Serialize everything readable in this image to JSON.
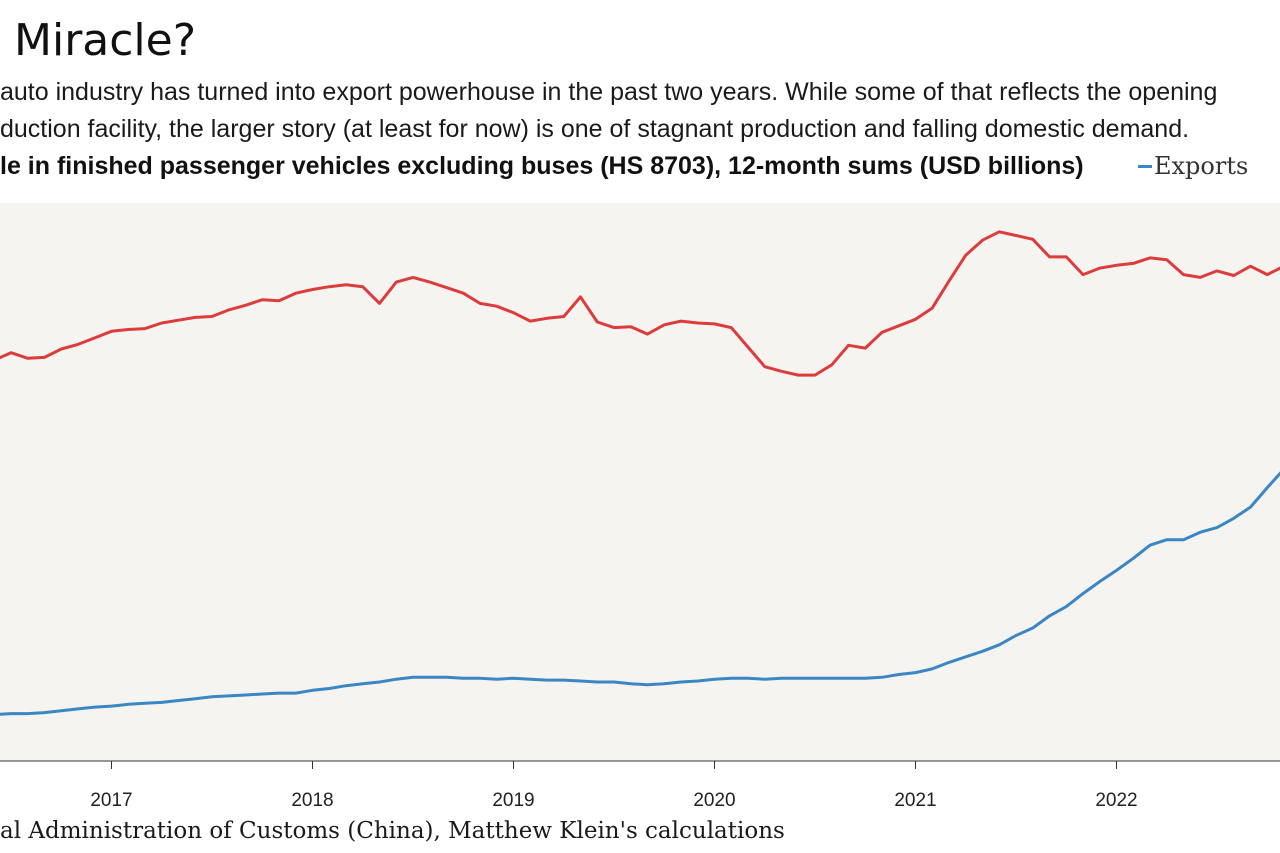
{
  "header": {
    "title": "Miracle?",
    "subtitle_lines": [
      "auto industry has turned into export powerhouse in the past two years. While some of that reflects the opening",
      "duction facility, the larger story (at least for now) is one of stagnant production and falling domestic demand."
    ]
  },
  "chart_title": "le in finished passenger vehicles excluding buses (HS 8703), 12-month sums (USD billions)",
  "source": "al Administration of Customs (China), Matthew Klein's calculations",
  "colors": {
    "plot_background": "#f6f4f0",
    "exports": "#3b87c4",
    "imports": "#dc3c3c",
    "axis": "#333333"
  },
  "chart_data": {
    "type": "line",
    "x_axis": {
      "tick_labels": [
        "2017",
        "2018",
        "2019",
        "2020",
        "2021",
        "2022"
      ],
      "range": [
        "2016-05",
        "2022-11"
      ]
    },
    "y_axis": {
      "tick_labels": [],
      "unit": "USD billions"
    },
    "grid": false,
    "legend": {
      "placement": "top-right",
      "visible_entries": [
        "Exports"
      ]
    },
    "x": [
      "2016-05",
      "2016-06",
      "2016-07",
      "2016-08",
      "2016-09",
      "2016-10",
      "2016-11",
      "2016-12",
      "2017-01",
      "2017-02",
      "2017-03",
      "2017-04",
      "2017-05",
      "2017-06",
      "2017-07",
      "2017-08",
      "2017-09",
      "2017-10",
      "2017-11",
      "2017-12",
      "2018-01",
      "2018-02",
      "2018-03",
      "2018-04",
      "2018-05",
      "2018-06",
      "2018-07",
      "2018-08",
      "2018-09",
      "2018-10",
      "2018-11",
      "2018-12",
      "2019-01",
      "2019-02",
      "2019-03",
      "2019-04",
      "2019-05",
      "2019-06",
      "2019-07",
      "2019-08",
      "2019-09",
      "2019-10",
      "2019-11",
      "2019-12",
      "2020-01",
      "2020-02",
      "2020-03",
      "2020-04",
      "2020-05",
      "2020-06",
      "2020-07",
      "2020-08",
      "2020-09",
      "2020-10",
      "2020-11",
      "2020-12",
      "2021-01",
      "2021-02",
      "2021-03",
      "2021-04",
      "2021-05",
      "2021-06",
      "2021-07",
      "2021-08",
      "2021-09",
      "2021-10",
      "2021-11",
      "2021-12",
      "2022-01",
      "2022-02",
      "2022-03",
      "2022-04",
      "2022-05",
      "2022-06",
      "2022-07",
      "2022-08",
      "2022-09",
      "2022-10",
      "2022-11"
    ],
    "series": [
      {
        "name": "Exports",
        "values": [
          5.0,
          5.0,
          5.1,
          5.1,
          5.2,
          5.4,
          5.6,
          5.8,
          5.9,
          6.1,
          6.2,
          6.3,
          6.5,
          6.7,
          6.9,
          7.0,
          7.1,
          7.2,
          7.3,
          7.3,
          7.6,
          7.8,
          8.1,
          8.3,
          8.5,
          8.8,
          9.0,
          9.0,
          9.0,
          8.9,
          8.9,
          8.8,
          8.9,
          8.8,
          8.7,
          8.7,
          8.6,
          8.5,
          8.5,
          8.3,
          8.2,
          8.3,
          8.5,
          8.6,
          8.8,
          8.9,
          8.9,
          8.8,
          8.9,
          8.9,
          8.9,
          8.9,
          8.9,
          8.9,
          9.0,
          9.3,
          9.5,
          9.9,
          10.6,
          11.2,
          11.8,
          12.5,
          13.5,
          14.3,
          15.6,
          16.6,
          18.0,
          19.3,
          20.5,
          21.8,
          23.2,
          23.8,
          23.8,
          24.6,
          25.1,
          26.1,
          27.3,
          29.4,
          31.4
        ]
      },
      {
        "name": "",
        "values": [
          43.3,
          43.1,
          43.9,
          43.3,
          43.4,
          44.3,
          44.8,
          45.5,
          46.2,
          46.4,
          46.5,
          47.1,
          47.4,
          47.7,
          47.8,
          48.5,
          49.0,
          49.6,
          49.5,
          50.3,
          50.7,
          51.0,
          51.2,
          51.0,
          49.2,
          51.5,
          52.0,
          51.5,
          50.9,
          50.3,
          49.2,
          48.9,
          48.2,
          47.3,
          47.6,
          47.8,
          49.9,
          47.2,
          46.6,
          46.7,
          45.9,
          46.9,
          47.3,
          47.1,
          47.0,
          46.6,
          44.5,
          42.4,
          41.9,
          41.5,
          41.5,
          42.6,
          44.7,
          44.4,
          46.1,
          46.8,
          47.5,
          48.7,
          51.6,
          54.4,
          56.0,
          56.9,
          56.5,
          56.1,
          54.2,
          54.2,
          52.3,
          53.0,
          53.3,
          53.5,
          54.1,
          53.9,
          52.3,
          52.0,
          52.7,
          52.2,
          53.2,
          52.3,
          53.2
        ]
      }
    ]
  }
}
